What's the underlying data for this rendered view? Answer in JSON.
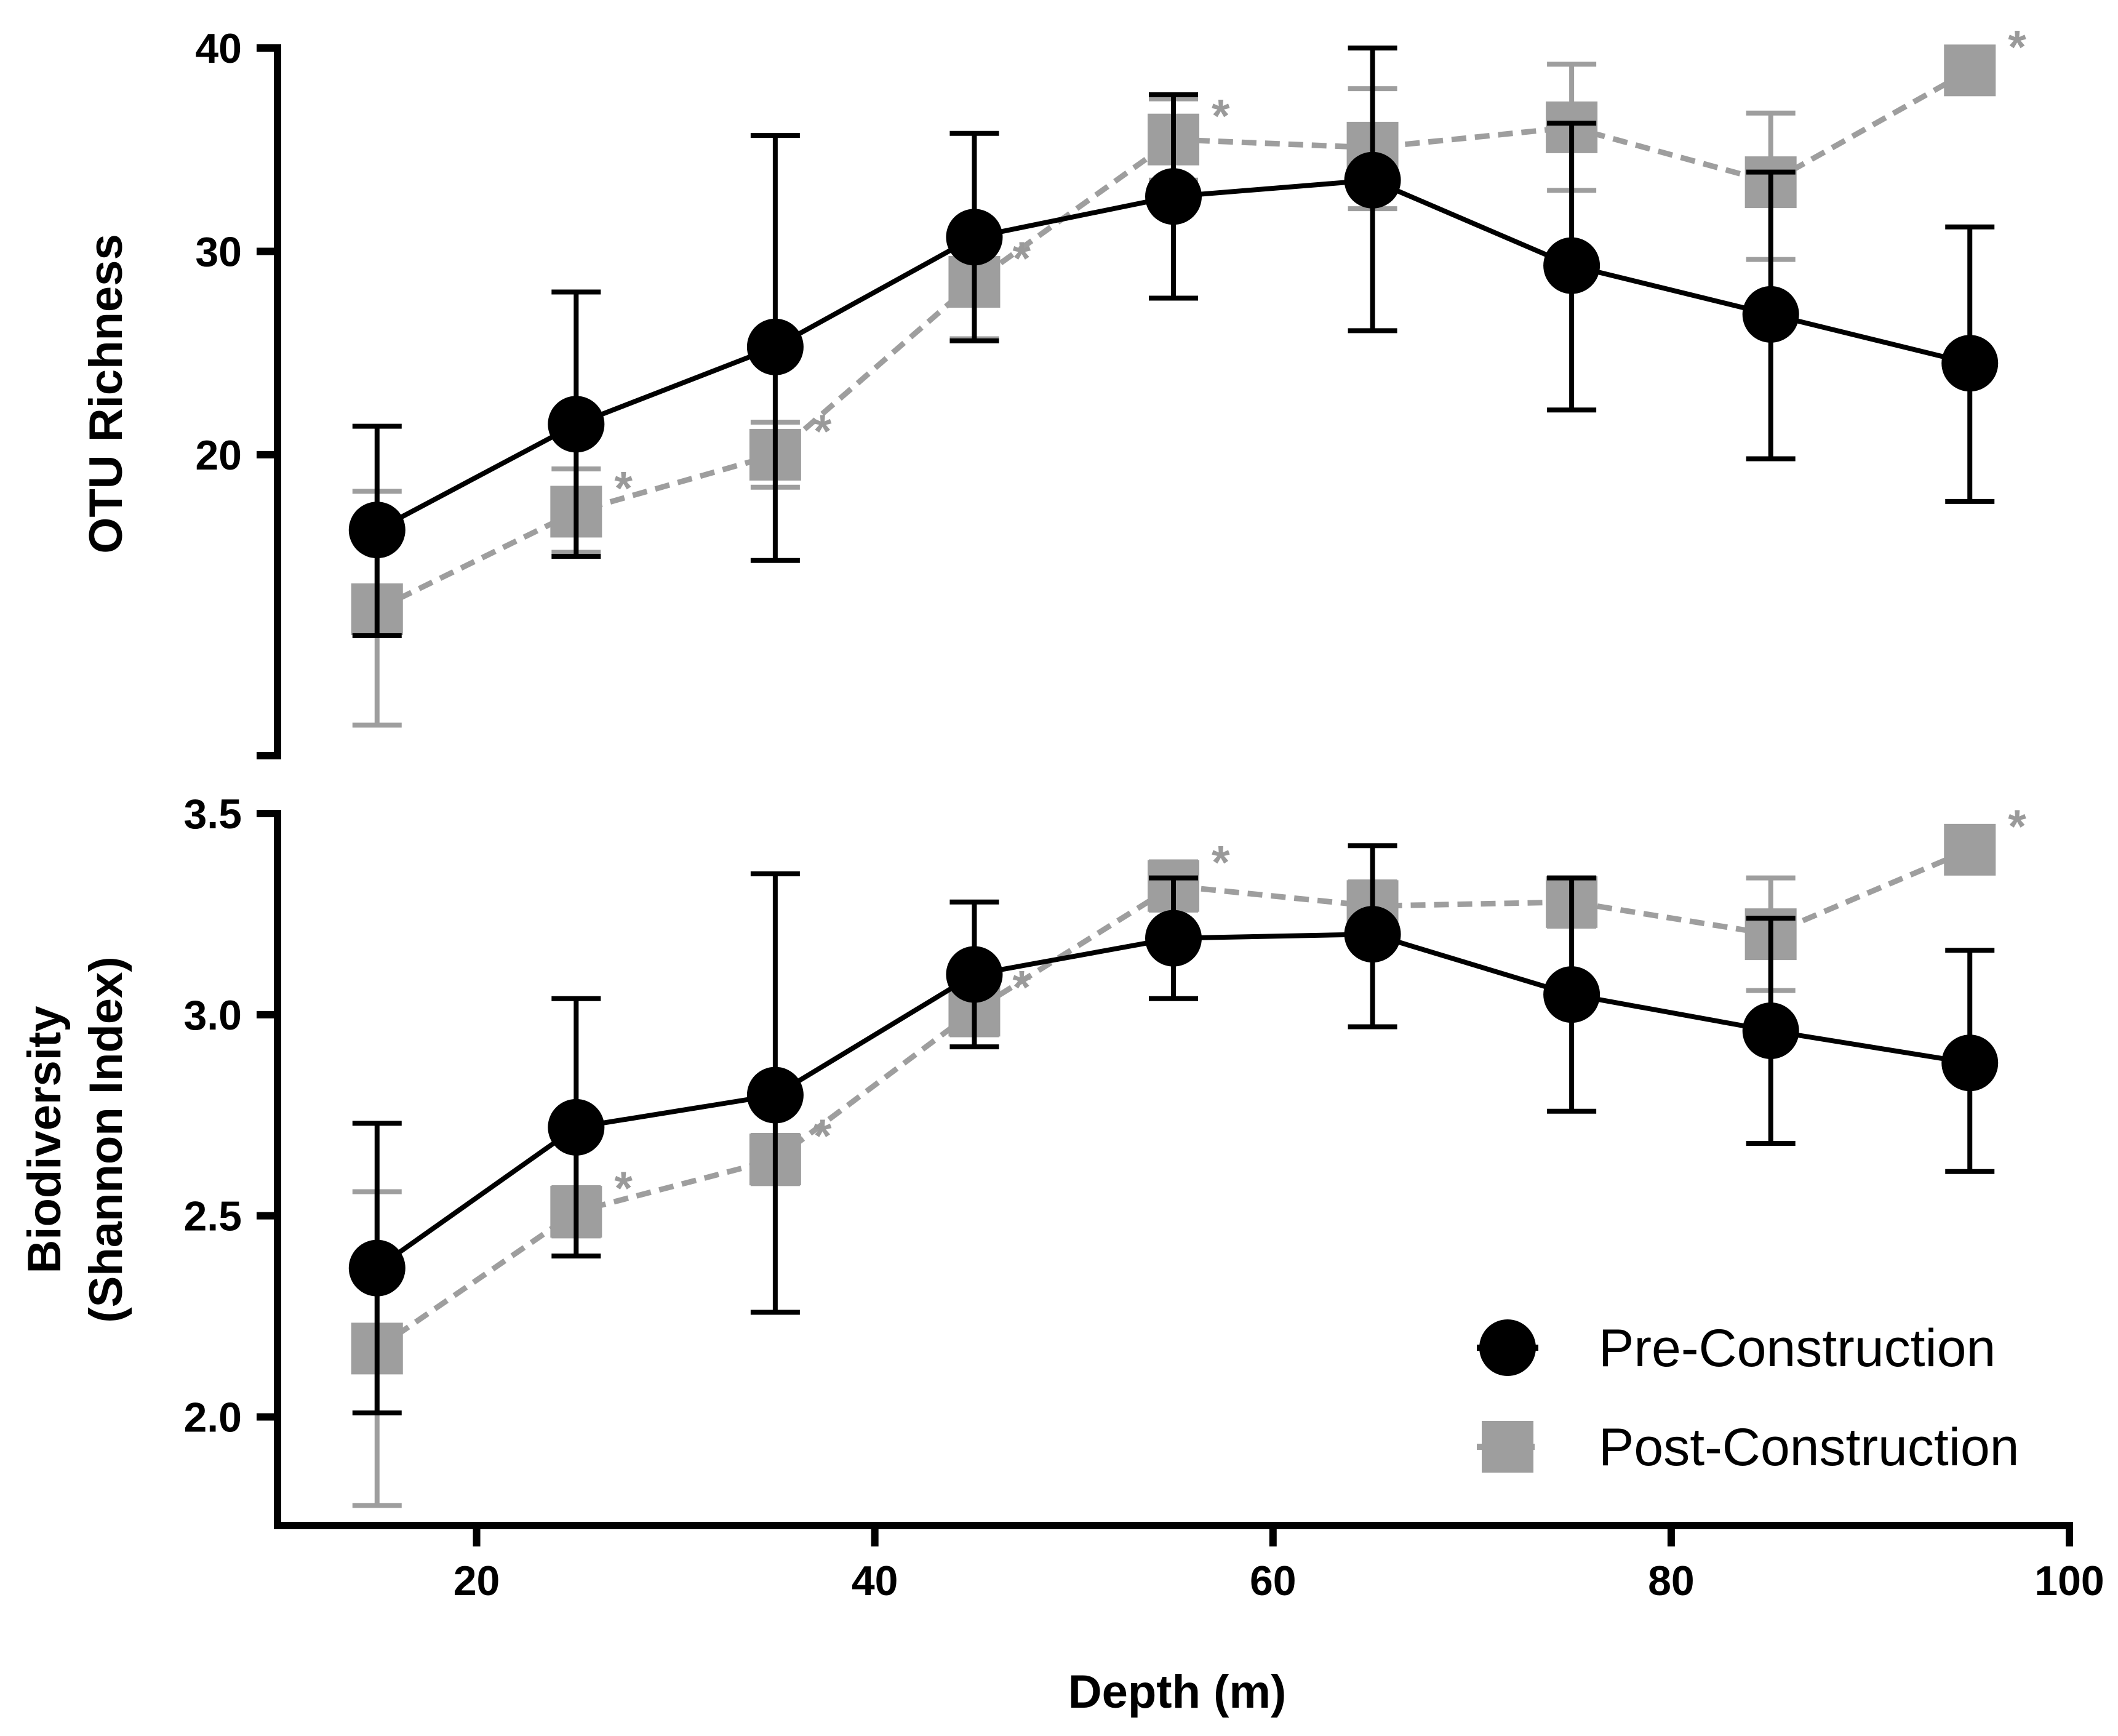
{
  "chart_data": {
    "type": "line",
    "xlabel": "Depth (m)",
    "x": [
      15,
      25,
      35,
      45,
      55,
      65,
      75,
      85,
      95
    ],
    "xlim": [
      10,
      100
    ],
    "xticks": [
      20,
      40,
      60,
      80,
      100
    ],
    "xtick_labels": [
      "20",
      "40",
      "60",
      "80",
      "100"
    ],
    "legend": {
      "placement": "bottom-right",
      "entries": [
        "Pre-Construction",
        "Post-Construction"
      ]
    },
    "colors": {
      "pre": "#000000",
      "post": "#9e9e9e",
      "star": "#9a9a9a"
    },
    "markers": {
      "pre": "circle",
      "post": "square"
    },
    "significance_marker": "*",
    "panels": [
      {
        "id": "richness",
        "ylabel": [
          "OTU Richness"
        ],
        "ylim": [
          5.2,
          40
        ],
        "yticks": [
          20,
          30,
          40
        ],
        "ytick_labels": [
          "20",
          "30",
          "40"
        ],
        "series": [
          {
            "name": "Pre-Construction",
            "values": [
              16.3,
              21.5,
              25.3,
              30.7,
              32.7,
              33.5,
              29.3,
              26.9,
              24.5
            ],
            "err_low": [
              11.1,
              15.0,
              14.8,
              25.6,
              27.7,
              26.1,
              22.2,
              19.8,
              17.7
            ],
            "err_high": [
              21.4,
              28.0,
              35.7,
              35.8,
              37.7,
              40.0,
              36.3,
              33.9,
              31.2
            ]
          },
          {
            "name": "Post-Construction",
            "values": [
              12.4,
              17.2,
              20.0,
              28.5,
              35.5,
              35.1,
              36.1,
              33.4,
              38.9
            ],
            "err_low": [
              6.7,
              15.2,
              18.4,
              25.7,
              33.5,
              32.1,
              33.0,
              29.6,
              38.9
            ],
            "err_high": [
              18.2,
              19.3,
              21.6,
              31.3,
              37.5,
              38.0,
              39.2,
              36.8,
              38.9
            ],
            "significant": [
              false,
              true,
              true,
              true,
              true,
              false,
              false,
              false,
              true
            ]
          }
        ]
      },
      {
        "id": "shannon",
        "ylabel": [
          "Biodiversity",
          "(Shannon Index)"
        ],
        "ylim": [
          1.73,
          3.5
        ],
        "yticks": [
          2.0,
          2.5,
          3.0,
          3.5
        ],
        "ytick_labels": [
          "2.0",
          "2.5",
          "3.0",
          "3.5"
        ],
        "series": [
          {
            "name": "Pre-Construction",
            "values": [
              2.37,
              2.72,
              2.8,
              3.1,
              3.19,
              3.2,
              3.05,
              2.96,
              2.88
            ],
            "err_low": [
              2.01,
              2.4,
              2.26,
              2.92,
              3.04,
              2.97,
              2.76,
              2.68,
              2.61
            ],
            "err_high": [
              2.73,
              3.04,
              3.35,
              3.28,
              3.34,
              3.42,
              3.34,
              3.24,
              3.16
            ]
          },
          {
            "name": "Post-Construction",
            "values": [
              2.17,
              2.51,
              2.64,
              3.01,
              3.32,
              3.27,
              3.28,
              3.2,
              3.41
            ],
            "err_low": [
              1.78,
              2.45,
              2.58,
              2.95,
              3.26,
              3.21,
              3.22,
              3.06,
              3.41
            ],
            "err_high": [
              2.56,
              2.57,
              2.7,
              3.07,
              3.38,
              3.33,
              3.34,
              3.34,
              3.41
            ],
            "significant": [
              false,
              true,
              true,
              true,
              true,
              false,
              false,
              false,
              true
            ]
          }
        ]
      }
    ]
  }
}
